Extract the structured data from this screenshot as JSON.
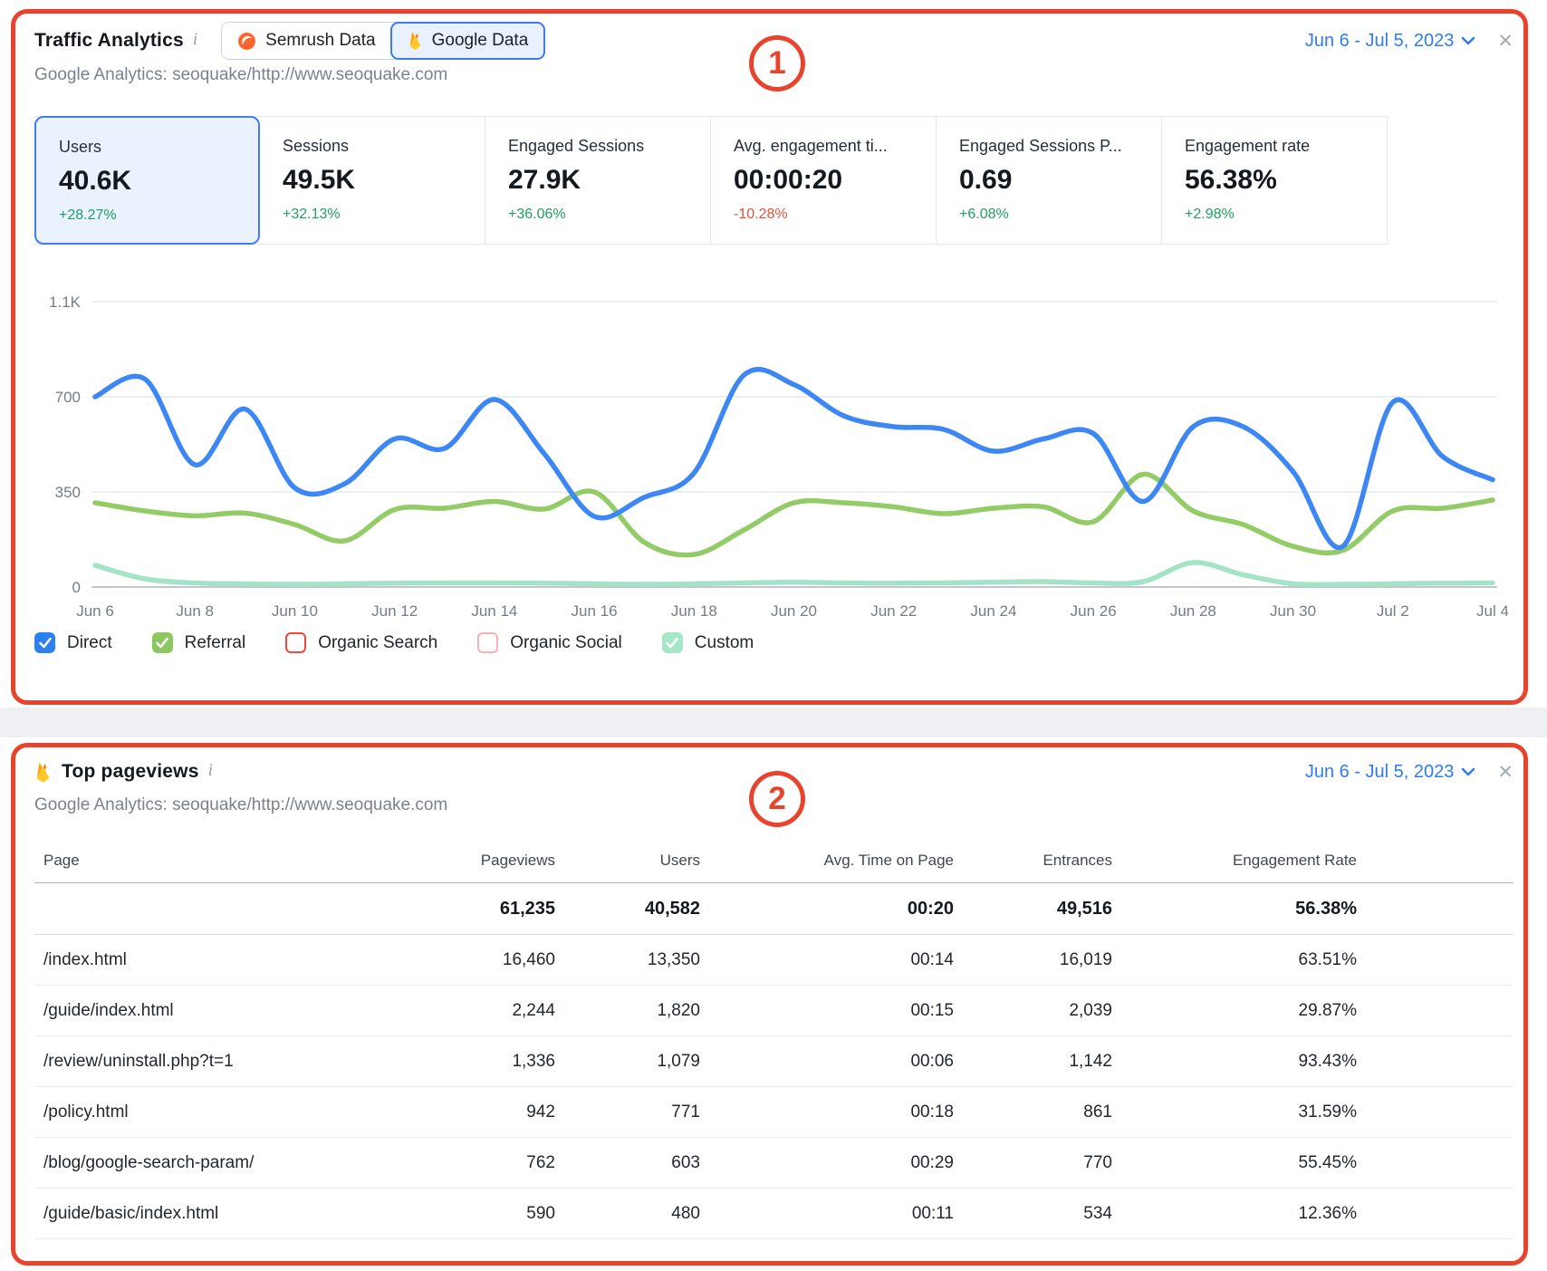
{
  "annotations": {
    "accent_color": "#e8442d",
    "badge1": "1",
    "badge2": "2"
  },
  "panel1": {
    "title": "Traffic Analytics",
    "info_icon": "i",
    "subtitle": "Google Analytics: seoquake/http://www.seoquake.com",
    "date_range": "Jun 6 - Jul 5, 2023",
    "toggle": {
      "semrush": "Semrush Data",
      "google": "Google Data",
      "selected": "google"
    },
    "metrics": [
      {
        "label": "Users",
        "value": "40.6K",
        "delta": "+28.27%",
        "trend": "up",
        "selected": true
      },
      {
        "label": "Sessions",
        "value": "49.5K",
        "delta": "+32.13%",
        "trend": "up",
        "selected": false
      },
      {
        "label": "Engaged Sessions",
        "value": "27.9K",
        "delta": "+36.06%",
        "trend": "up",
        "selected": false
      },
      {
        "label": "Avg. engagement ti...",
        "value": "00:00:20",
        "delta": "-10.28%",
        "trend": "down",
        "selected": false
      },
      {
        "label": "Engaged Sessions P...",
        "value": "0.69",
        "delta": "+6.08%",
        "trend": "up",
        "selected": false
      },
      {
        "label": "Engagement rate",
        "value": "56.38%",
        "delta": "+2.98%",
        "trend": "up",
        "selected": false
      }
    ],
    "legend": [
      {
        "label": "Direct",
        "checked": true,
        "color": "#2e7ff0"
      },
      {
        "label": "Referral",
        "checked": true,
        "color": "#8cc85f"
      },
      {
        "label": "Organic Search",
        "checked": false,
        "color": "#f0483c"
      },
      {
        "label": "Organic Social",
        "checked": false,
        "color": "#f8b1b1"
      },
      {
        "label": "Custom",
        "checked": true,
        "color": "#a5e6c6"
      }
    ]
  },
  "chart_data": {
    "type": "line",
    "x": [
      "Jun 6",
      "Jun 7",
      "Jun 8",
      "Jun 9",
      "Jun 10",
      "Jun 11",
      "Jun 12",
      "Jun 13",
      "Jun 14",
      "Jun 15",
      "Jun 16",
      "Jun 17",
      "Jun 18",
      "Jun 19",
      "Jun 20",
      "Jun 21",
      "Jun 22",
      "Jun 23",
      "Jun 24",
      "Jun 25",
      "Jun 26",
      "Jun 27",
      "Jun 28",
      "Jun 29",
      "Jun 30",
      "Jul 1",
      "Jul 2",
      "Jul 3",
      "Jul 4"
    ],
    "tick_labels": [
      "Jun 6",
      "Jun 8",
      "Jun 10",
      "Jun 12",
      "Jun 14",
      "Jun 16",
      "Jun 18",
      "Jun 20",
      "Jun 22",
      "Jun 24",
      "Jun 26",
      "Jun 28",
      "Jun 30",
      "Jul 2",
      "Jul 4"
    ],
    "series": [
      {
        "name": "Custom",
        "color": "#a3e4c6",
        "values": [
          80,
          30,
          15,
          12,
          10,
          12,
          14,
          15,
          15,
          14,
          12,
          10,
          12,
          15,
          18,
          15,
          14,
          15,
          18,
          20,
          15,
          20,
          90,
          45,
          12,
          10,
          12,
          14,
          15
        ]
      },
      {
        "name": "Referral",
        "color": "#93cb66",
        "values": [
          310,
          280,
          262,
          272,
          230,
          170,
          285,
          290,
          315,
          287,
          350,
          165,
          120,
          210,
          310,
          310,
          295,
          270,
          290,
          295,
          240,
          415,
          280,
          230,
          150,
          135,
          280,
          290,
          320
        ]
      },
      {
        "name": "Direct",
        "color": "#3d87f5",
        "values": [
          700,
          765,
          450,
          655,
          365,
          380,
          545,
          510,
          690,
          490,
          260,
          330,
          420,
          780,
          745,
          630,
          590,
          580,
          500,
          545,
          565,
          315,
          590,
          590,
          425,
          150,
          680,
          480,
          395
        ]
      }
    ],
    "title": "Traffic Analytics by channel",
    "xlabel": "",
    "ylabel": "",
    "ylim": [
      0,
      1100
    ],
    "yticks": [
      0,
      350,
      700,
      1050
    ],
    "ytick_labels": [
      "0",
      "350",
      "700",
      "1.1K"
    ],
    "grid": true,
    "legend_position": "bottom"
  },
  "panel2": {
    "title": "Top pageviews",
    "info_icon": "i",
    "subtitle": "Google Analytics: seoquake/http://www.seoquake.com",
    "date_range": "Jun 6 - Jul 5, 2023",
    "table": {
      "columns": [
        "Page",
        "Pageviews",
        "Users",
        "Avg. Time on Page",
        "Entrances",
        "Engagement Rate"
      ],
      "totals": [
        "61,235",
        "40,582",
        "00:20",
        "49,516",
        "56.38%"
      ],
      "rows": [
        [
          "/index.html",
          "16,460",
          "13,350",
          "00:14",
          "16,019",
          "63.51%"
        ],
        [
          "/guide/index.html",
          "2,244",
          "1,820",
          "00:15",
          "2,039",
          "29.87%"
        ],
        [
          "/review/uninstall.php?t=1",
          "1,336",
          "1,079",
          "00:06",
          "1,142",
          "93.43%"
        ],
        [
          "/policy.html",
          "942",
          "771",
          "00:18",
          "861",
          "31.59%"
        ],
        [
          "/blog/google-search-param/",
          "762",
          "603",
          "00:29",
          "770",
          "55.45%"
        ],
        [
          "/guide/basic/index.html",
          "590",
          "480",
          "00:11",
          "534",
          "12.36%"
        ]
      ]
    }
  }
}
